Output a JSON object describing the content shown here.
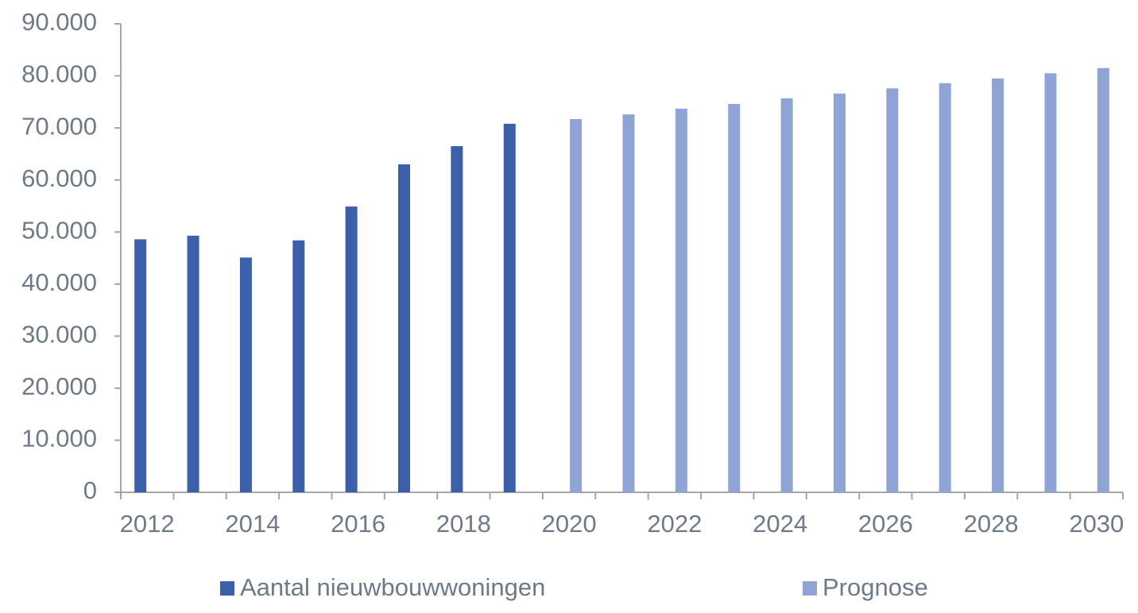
{
  "chart_data": {
    "type": "bar",
    "categories": [
      "2012",
      null,
      "2014",
      null,
      "2016",
      null,
      "2018",
      null,
      "2020",
      null,
      "2022",
      null,
      "2024",
      null,
      "2026",
      null,
      "2028",
      null,
      "2030"
    ],
    "series": [
      {
        "name": "Aantal nieuwbouwwoningen",
        "color": "#3b5fa9",
        "values": [
          48600,
          49300,
          45100,
          48400,
          54900,
          63000,
          66500,
          70800,
          null,
          null,
          null,
          null,
          null,
          null,
          null,
          null,
          null,
          null,
          null
        ]
      },
      {
        "name": "Prognose",
        "color": "#8fa4d5",
        "values": [
          null,
          null,
          null,
          null,
          null,
          null,
          null,
          null,
          71700,
          72600,
          73700,
          74600,
          75700,
          76600,
          77600,
          78600,
          79500,
          80500,
          81500
        ]
      }
    ],
    "ylim": [
      0,
      90000
    ],
    "yticks": [
      0,
      {
        "value": 10000,
        "label": "10.000"
      },
      {
        "value": 20000,
        "label": "20.000"
      },
      {
        "value": 30000,
        "label": "30.000"
      },
      {
        "value": 40000,
        "label": "40.000"
      },
      {
        "value": 50000,
        "label": "50.000"
      },
      {
        "value": 60000,
        "label": "60.000"
      },
      {
        "value": 70000,
        "label": "70.000"
      },
      {
        "value": 80000,
        "label": "80.000"
      },
      {
        "value": 90000,
        "label": "90.000"
      }
    ],
    "grid": false,
    "legend": "bottom"
  }
}
